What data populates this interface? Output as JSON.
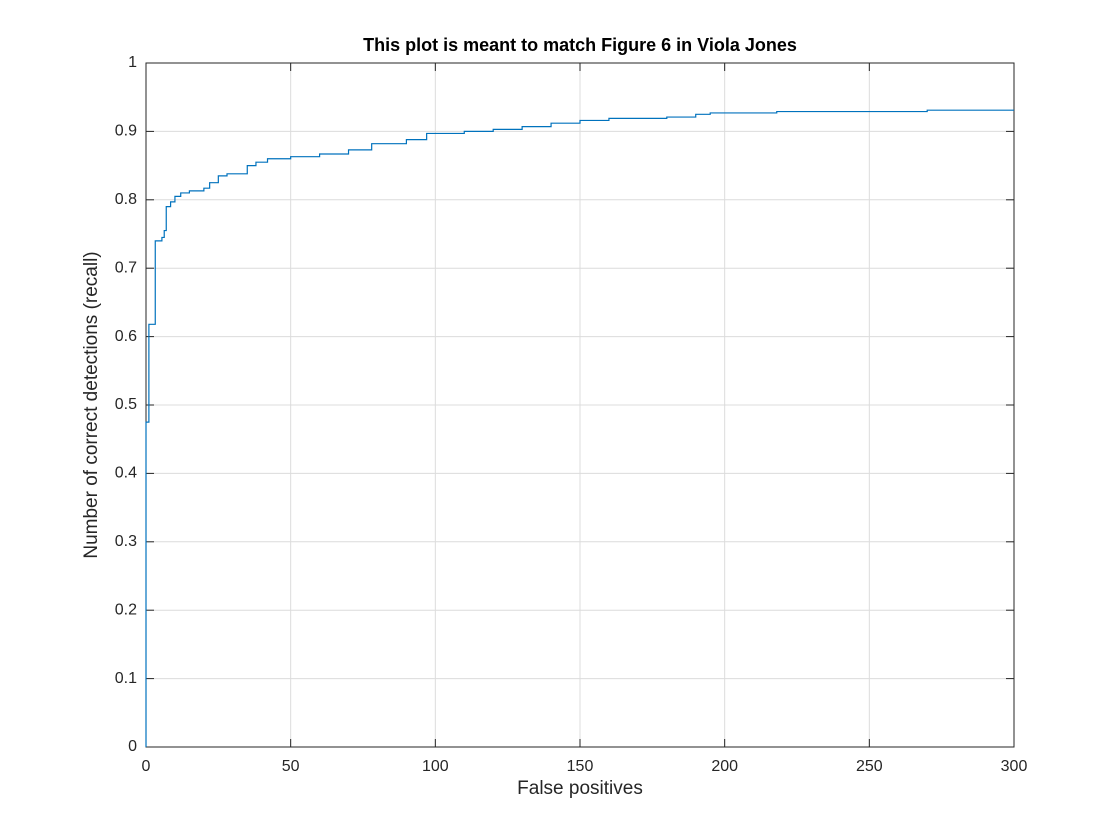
{
  "chart_data": {
    "type": "line",
    "step": true,
    "title": "This plot is meant to match Figure 6 in Viola Jones",
    "x_label": "False positives",
    "y_label": "Number of correct detections (recall)",
    "series": [
      {
        "color": "#0072bd",
        "x": [
          0,
          0,
          1,
          1,
          3.2,
          3.2,
          5.5,
          5.5,
          6.3,
          6.3,
          7,
          7,
          8.5,
          8.5,
          10,
          10,
          12,
          12,
          15,
          15,
          20,
          20,
          22,
          22,
          25,
          25,
          28,
          28,
          35,
          35,
          38,
          38,
          42,
          42,
          50,
          50,
          60,
          60,
          70,
          70,
          78,
          78,
          90,
          90,
          97,
          97,
          110,
          110,
          120,
          120,
          130,
          130,
          140,
          140,
          150,
          150,
          160,
          160,
          180,
          180,
          190,
          190,
          195,
          195,
          218,
          218,
          270,
          270,
          300
        ],
        "values": [
          0,
          0.475,
          0.475,
          0.618,
          0.618,
          0.74,
          0.74,
          0.745,
          0.745,
          0.755,
          0.755,
          0.79,
          0.79,
          0.797,
          0.797,
          0.805,
          0.805,
          0.81,
          0.81,
          0.813,
          0.813,
          0.817,
          0.817,
          0.825,
          0.825,
          0.835,
          0.835,
          0.838,
          0.838,
          0.85,
          0.85,
          0.855,
          0.855,
          0.86,
          0.86,
          0.863,
          0.863,
          0.867,
          0.867,
          0.873,
          0.873,
          0.882,
          0.882,
          0.888,
          0.888,
          0.897,
          0.897,
          0.9,
          0.9,
          0.903,
          0.903,
          0.907,
          0.907,
          0.912,
          0.912,
          0.916,
          0.916,
          0.919,
          0.919,
          0.921,
          0.921,
          0.925,
          0.925,
          0.927,
          0.927,
          0.929,
          0.929,
          0.931,
          0.931
        ]
      }
    ],
    "xlim": [
      0,
      300
    ],
    "xticks": [
      0,
      50,
      100,
      150,
      200,
      250,
      300
    ],
    "ylim": [
      0,
      1
    ],
    "yticks": [
      0,
      0.1,
      0.2,
      0.3,
      0.4,
      0.5,
      0.6,
      0.7,
      0.8,
      0.9,
      1
    ],
    "grid": true
  }
}
